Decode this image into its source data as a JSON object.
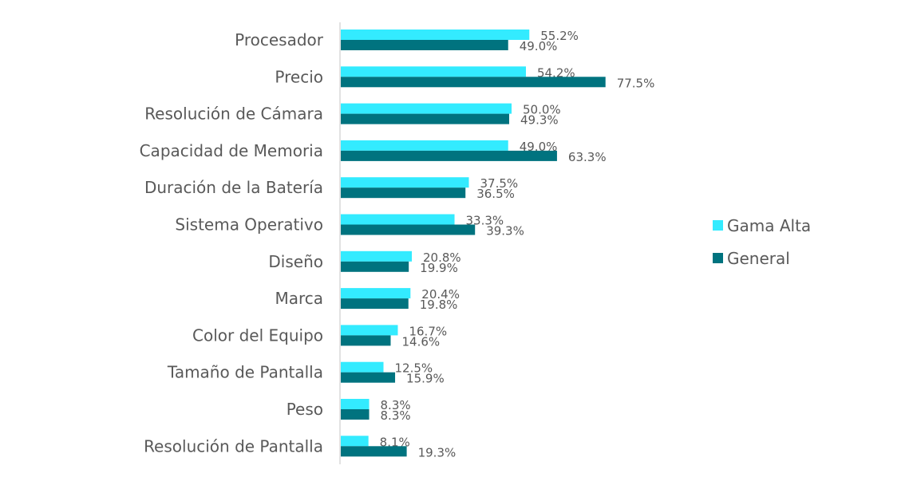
{
  "chart_data": {
    "type": "bar",
    "orientation": "horizontal",
    "title": "",
    "xlabel": "",
    "ylabel": "",
    "categories": [
      "Procesador",
      "Precio",
      "Resolución de Cámara",
      "Capacidad de Memoria",
      "Duración de la Batería",
      "Sistema Operativo",
      "Diseño",
      "Marca",
      "Color del Equipo",
      "Tamaño de Pantalla",
      "Peso",
      "Resolución de Pantalla"
    ],
    "series": [
      {
        "name": "Gama Alta",
        "color": "#33EBFF",
        "values": [
          55.2,
          54.2,
          50.0,
          49.0,
          37.5,
          33.3,
          20.8,
          20.4,
          16.7,
          12.5,
          8.3,
          8.1
        ],
        "labels": [
          "55.2%",
          "54.2%",
          "50.0%",
          "49.0%",
          "37.5%",
          "33.3%",
          "20.8%",
          "20.4%",
          "16.7%",
          "12.5%",
          "8.3%",
          "8.1%"
        ]
      },
      {
        "name": "General",
        "color": "#00737F",
        "values": [
          49.0,
          77.5,
          49.3,
          63.3,
          36.5,
          39.3,
          19.9,
          19.8,
          14.6,
          15.9,
          8.3,
          19.3
        ],
        "labels": [
          "49.0%",
          "77.5%",
          "49.3%",
          "63.3%",
          "36.5%",
          "39.3%",
          "19.9%",
          "19.8%",
          "14.6%",
          "15.9%",
          "8.3%",
          "19.3%"
        ]
      }
    ],
    "xlim": [
      0,
      100
    ],
    "grid": false,
    "legend": "right",
    "axis_color": "#D9D9D9",
    "text_color": "#595959"
  }
}
